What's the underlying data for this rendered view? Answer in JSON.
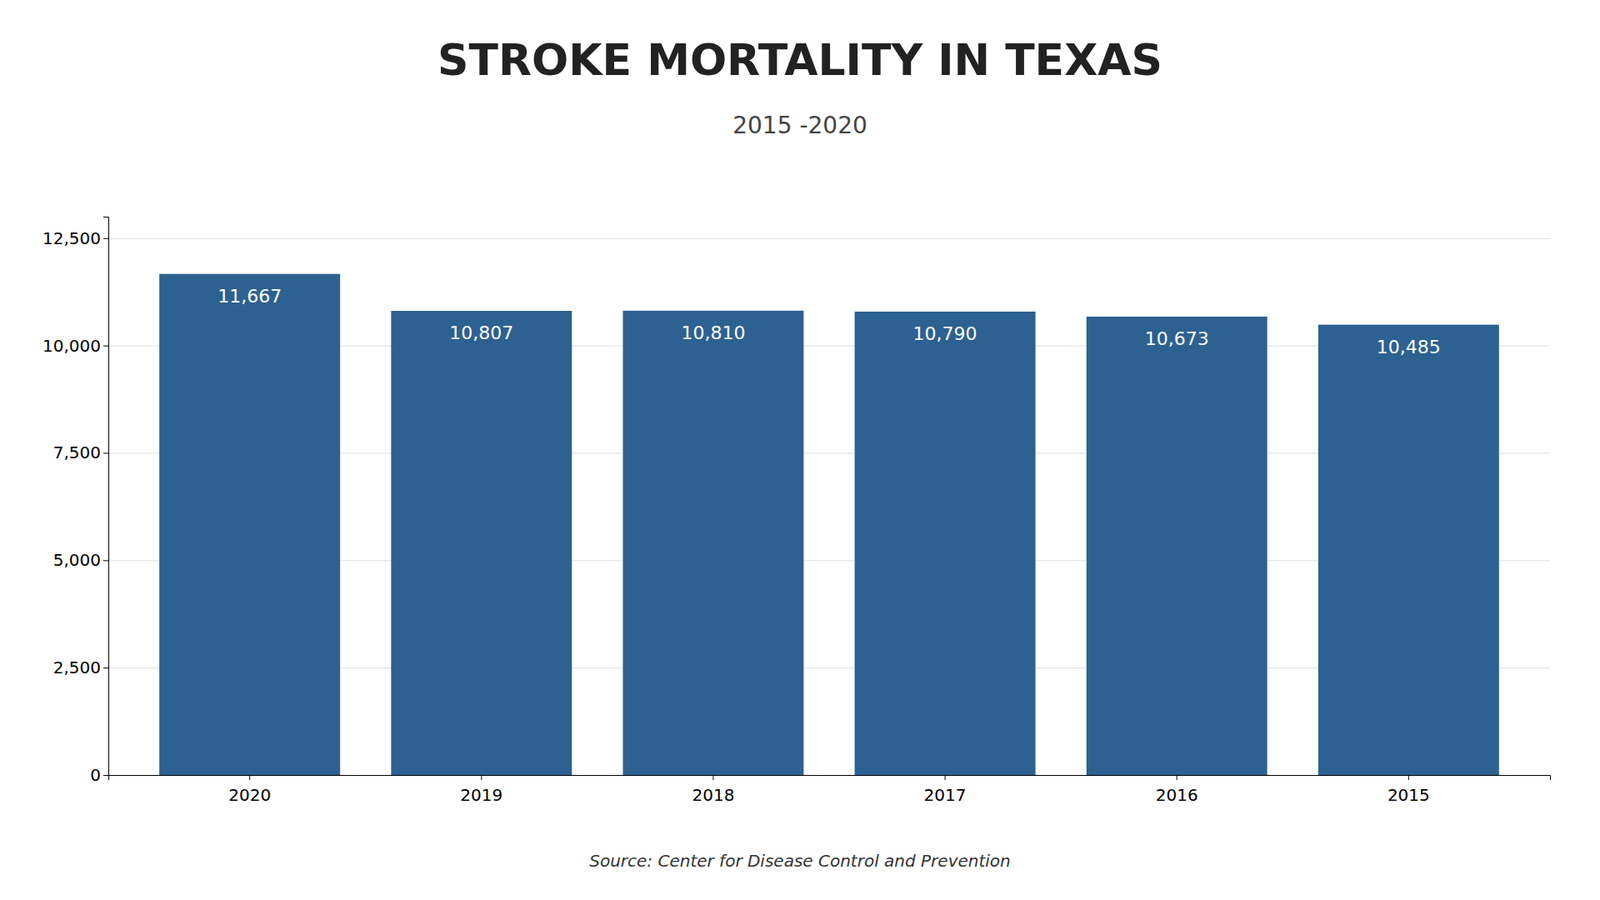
{
  "chart_data": {
    "type": "bar",
    "title": "STROKE MORTALITY IN TEXAS",
    "subtitle": "2015 -2020",
    "annotations": [
      "Source: Center for Disease Control and Prevention"
    ],
    "categories": [
      "2020",
      "2019",
      "2018",
      "2017",
      "2016",
      "2015"
    ],
    "values": [
      11667,
      10807,
      10810,
      10790,
      10673,
      10485
    ],
    "value_labels": [
      "11,667",
      "10,807",
      "10,810",
      "10,790",
      "10,673",
      "10,485"
    ],
    "data_labels": true,
    "color": "#2d6191",
    "ylim": [
      0,
      13000
    ],
    "yticks": [
      0,
      {
        "value": 2500,
        "label": "2,500"
      },
      {
        "value": 5000,
        "label": "5,000"
      },
      {
        "value": 7500,
        "label": "7,500"
      },
      {
        "value": 10000,
        "label": "10,000"
      },
      {
        "value": 12500,
        "label": "12,500"
      }
    ],
    "grid": true
  }
}
